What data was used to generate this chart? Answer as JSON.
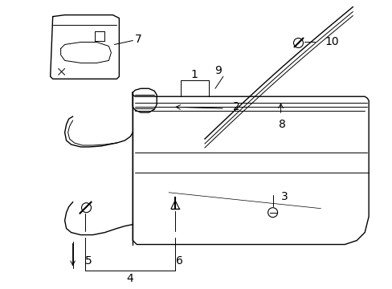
{
  "bg_color": "#ffffff",
  "line_color": "#000000",
  "figure_width": 4.89,
  "figure_height": 3.6,
  "dpi": 100,
  "font_size": 9
}
